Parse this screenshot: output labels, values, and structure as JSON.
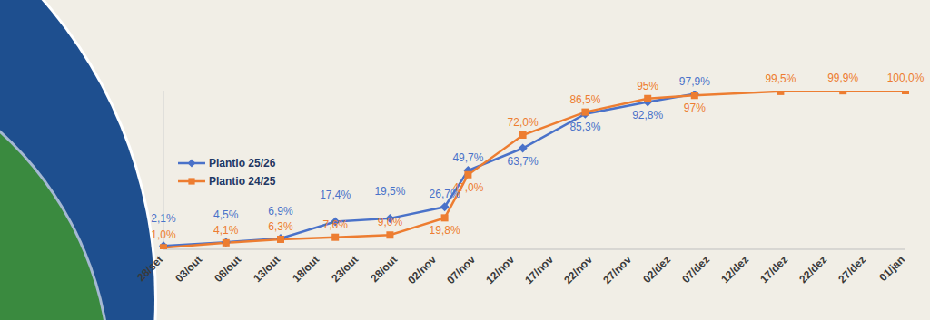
{
  "chart_data": {
    "type": "line",
    "categories": [
      "28/set",
      null,
      null,
      null,
      null,
      "03/out",
      null,
      null,
      null,
      null,
      "08/out",
      null,
      null,
      null,
      null,
      "13/out",
      null,
      null,
      null,
      null,
      "18/out",
      null,
      null,
      null,
      null,
      "23/out",
      null,
      null,
      null,
      null,
      "28/out",
      null,
      null,
      null,
      null,
      "02/nov",
      null,
      null,
      null,
      null,
      "07/nov",
      null,
      null,
      null,
      null,
      "12/nov",
      null,
      null,
      null,
      null,
      "17/nov",
      null,
      null,
      null,
      null,
      "22/nov",
      null,
      null,
      null,
      null,
      "27/nov",
      null,
      null,
      null,
      null,
      "02/dez",
      null,
      null,
      null,
      null,
      "07/dez",
      null,
      null,
      null,
      null,
      "12/dez",
      null,
      null,
      null,
      null,
      "17/dez",
      null,
      null,
      null,
      null,
      "22/dez",
      null,
      null,
      null,
      null,
      "27/dez",
      null,
      null,
      null,
      null,
      "01/jan"
    ],
    "series": [
      {
        "name": "Plantio 25/26",
        "color": "#4a72c9",
        "marker": "diamond",
        "line_style": "solid",
        "values": [
          2.1,
          null,
          null,
          null,
          null,
          null,
          null,
          null,
          4.5,
          null,
          null,
          null,
          null,
          null,
          null,
          6.9,
          null,
          null,
          null,
          null,
          null,
          null,
          17.4,
          null,
          null,
          null,
          null,
          null,
          null,
          19.5,
          null,
          null,
          null,
          null,
          null,
          null,
          26.7,
          null,
          null,
          49.7,
          null,
          null,
          null,
          null,
          null,
          null,
          63.7,
          null,
          null,
          null,
          null,
          null,
          null,
          null,
          85.3,
          null,
          null,
          null,
          null,
          null,
          null,
          null,
          92.8,
          null,
          null,
          null,
          null,
          null,
          97.9,
          null,
          null,
          null,
          null,
          null,
          null,
          null,
          null,
          null,
          null,
          null,
          null,
          null,
          null,
          null,
          null,
          null,
          null,
          null,
          null,
          null,
          null,
          null,
          null,
          null,
          null,
          null
        ],
        "value_labels": [
          "2,1%",
          null,
          null,
          null,
          null,
          null,
          null,
          null,
          "4,5%",
          null,
          null,
          null,
          null,
          null,
          null,
          "6,9%",
          null,
          null,
          null,
          null,
          null,
          null,
          "17,4%",
          null,
          null,
          null,
          null,
          null,
          null,
          "19,5%",
          null,
          null,
          null,
          null,
          null,
          null,
          "26,7%",
          null,
          null,
          "49,7%",
          null,
          null,
          null,
          null,
          null,
          null,
          "63,7%",
          null,
          null,
          null,
          null,
          null,
          null,
          null,
          "85,3%",
          null,
          null,
          null,
          null,
          null,
          null,
          null,
          "92,8%",
          null,
          null,
          null,
          null,
          null,
          "97,9%",
          null,
          null,
          null,
          null,
          null,
          null,
          null,
          null,
          null,
          null,
          null,
          null,
          null,
          null,
          null,
          null,
          null,
          null,
          null,
          null,
          null,
          null,
          null,
          null,
          null,
          null,
          null
        ]
      },
      {
        "name": "Plantio 24/25",
        "color": "#ed7d31",
        "marker": "square",
        "line_style": "solid",
        "values": [
          1.0,
          null,
          null,
          null,
          null,
          null,
          null,
          null,
          4.1,
          null,
          null,
          null,
          null,
          null,
          null,
          6.3,
          null,
          null,
          null,
          null,
          null,
          null,
          7.6,
          null,
          null,
          null,
          null,
          null,
          null,
          9.0,
          null,
          null,
          null,
          null,
          null,
          null,
          19.8,
          null,
          null,
          47.0,
          null,
          null,
          null,
          null,
          null,
          null,
          72.0,
          null,
          null,
          null,
          null,
          null,
          null,
          null,
          86.5,
          null,
          null,
          null,
          null,
          null,
          null,
          null,
          95,
          null,
          null,
          null,
          null,
          null,
          97,
          null,
          null,
          null,
          null,
          null,
          null,
          null,
          null,
          null,
          null,
          99.5,
          null,
          null,
          null,
          null,
          null,
          null,
          null,
          99.9,
          null,
          null,
          null,
          null,
          null,
          null,
          null,
          100.0
        ],
        "value_labels": [
          "1,0%",
          null,
          null,
          null,
          null,
          null,
          null,
          null,
          "4,1%",
          null,
          null,
          null,
          null,
          null,
          null,
          "6,3%",
          null,
          null,
          null,
          null,
          null,
          null,
          "7,6%",
          null,
          null,
          null,
          null,
          null,
          null,
          "9,0%",
          null,
          null,
          null,
          null,
          null,
          null,
          "19,8%",
          null,
          null,
          "47,0%",
          null,
          null,
          null,
          null,
          null,
          null,
          "72,0%",
          null,
          null,
          null,
          null,
          null,
          null,
          null,
          "86,5%",
          null,
          null,
          null,
          null,
          null,
          null,
          null,
          "95%",
          null,
          null,
          null,
          null,
          null,
          "97%",
          null,
          null,
          null,
          null,
          null,
          null,
          null,
          null,
          null,
          null,
          "99,5%",
          null,
          null,
          null,
          null,
          null,
          null,
          null,
          "99,9%",
          null,
          null,
          null,
          null,
          null,
          null,
          null,
          "100,0%"
        ]
      }
    ],
    "ylim": [
      0,
      100
    ],
    "yticks": [],
    "grid": false,
    "legend": "left",
    "tick_labels": "x",
    "data_labels": true
  }
}
